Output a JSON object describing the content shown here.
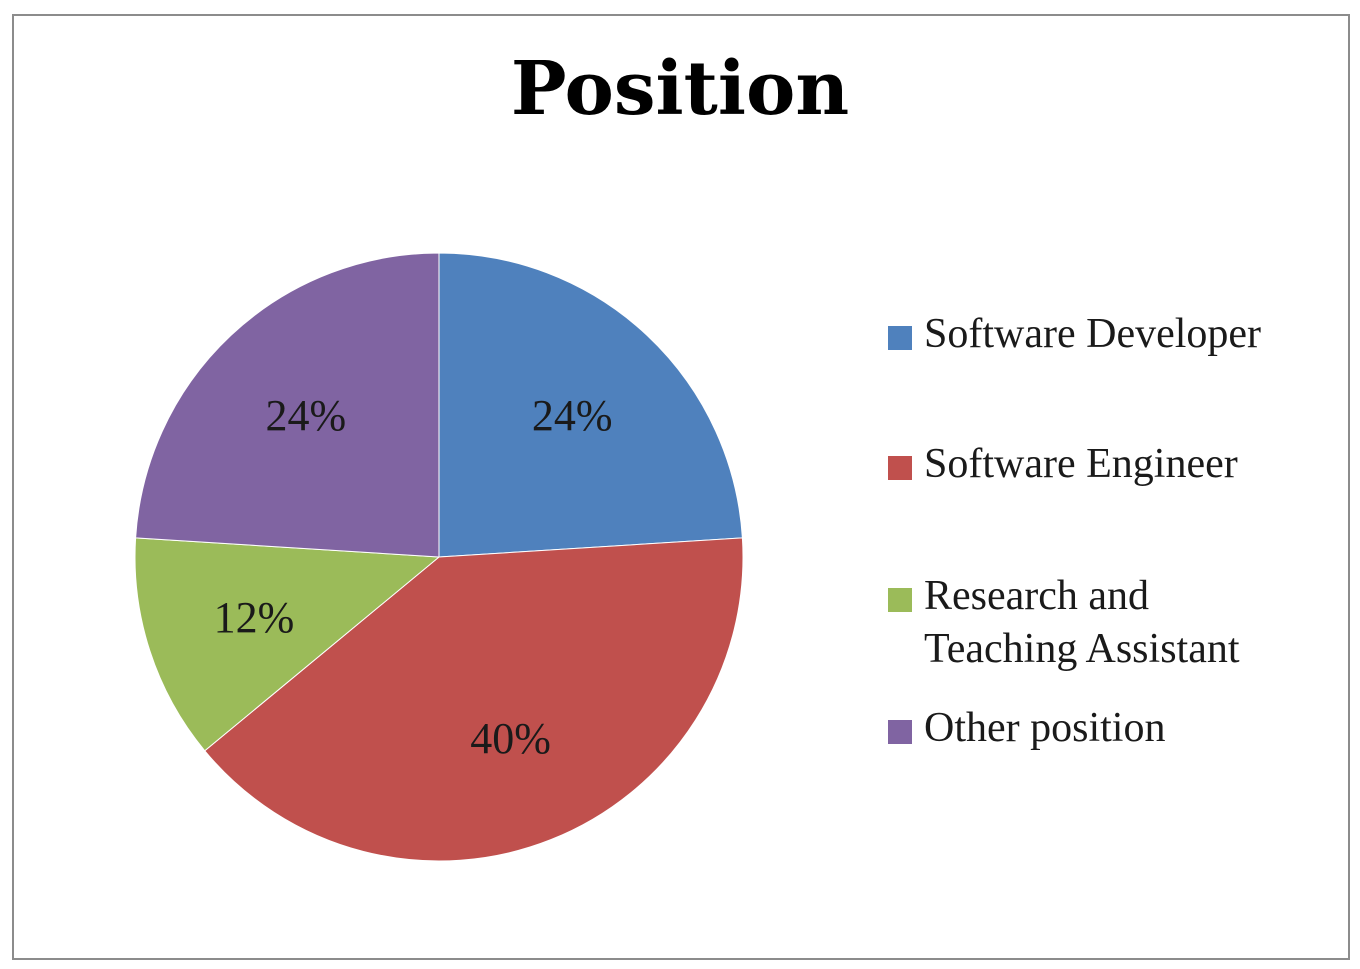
{
  "chart_data": {
    "type": "pie",
    "title": "Position",
    "slices": [
      {
        "label": "Software Developer",
        "value": 24,
        "display": "24%",
        "color": "#4f81bd"
      },
      {
        "label": "Software Engineer",
        "value": 40,
        "display": "40%",
        "color": "#c0504d"
      },
      {
        "label": "Research and Teaching Assistant",
        "value": 12,
        "display": "12%",
        "color": "#9bbb59"
      },
      {
        "label": "Other position",
        "value": 24,
        "display": "24%",
        "color": "#8064a2"
      }
    ],
    "legend_position": "right"
  }
}
